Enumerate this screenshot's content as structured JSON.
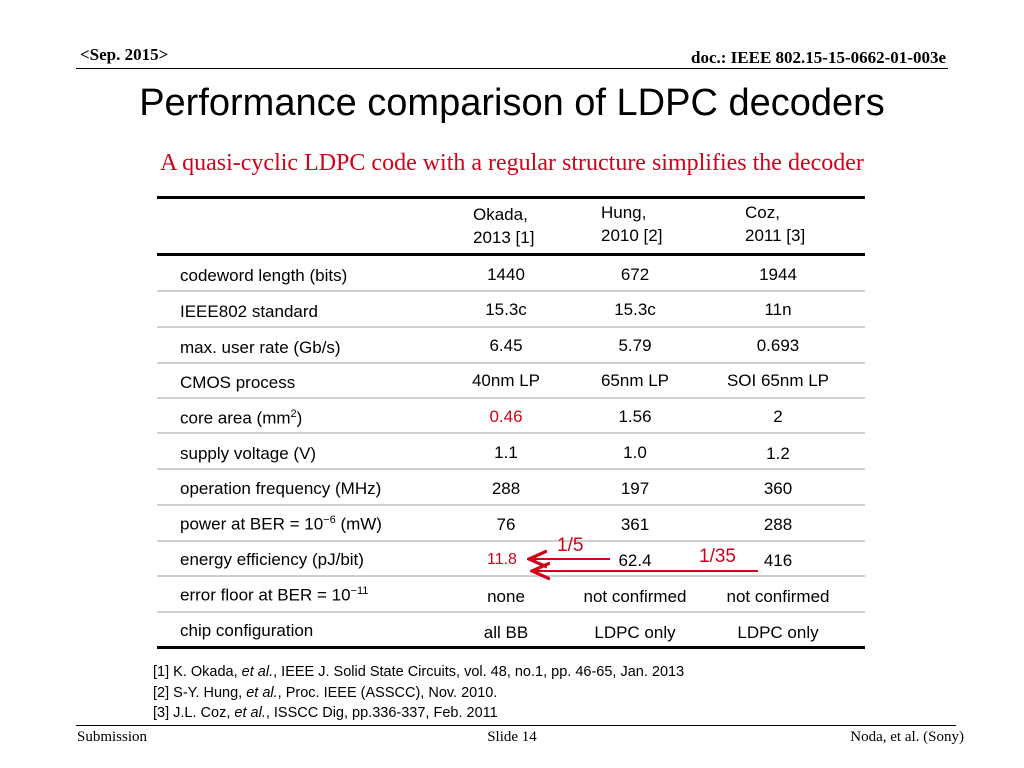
{
  "header": {
    "date": "<Sep. 2015>",
    "doc": "doc.: IEEE 802.15-15-0662-01-003e"
  },
  "title": "Performance comparison of LDPC decoders",
  "subtitle": "A quasi-cyclic LDPC code with a regular structure simplifies the decoder",
  "table": {
    "columns": [
      {
        "line1": "Okada,",
        "line2": "2013 [1]"
      },
      {
        "line1": "Hung,",
        "line2": "2010 [2]"
      },
      {
        "line1": "Coz,",
        "line2": "2011 [3]"
      }
    ],
    "rows": [
      {
        "label": "codeword length (bits)",
        "values": [
          "1440",
          "672",
          "1944"
        ]
      },
      {
        "label": "IEEE802 standard",
        "values": [
          "15.3c",
          "15.3c",
          "11n"
        ]
      },
      {
        "label": "max. user rate (Gb/s)",
        "values": [
          "6.45",
          "5.79",
          "0.693"
        ]
      },
      {
        "label": "CMOS process",
        "values": [
          "40nm LP",
          "65nm LP",
          "SOI 65nm LP"
        ]
      },
      {
        "label_pre": "core area (mm",
        "label_sup": "2",
        "label_post": ")",
        "values": [
          "0.46",
          "1.56",
          "2"
        ]
      },
      {
        "label": "supply voltage (V)",
        "values": [
          "1.1",
          "1.0",
          "1.2"
        ]
      },
      {
        "label": "operation frequency (MHz)",
        "values": [
          "288",
          "197",
          "360"
        ]
      },
      {
        "label_pre": "power at BER = 10",
        "label_sup": "−6",
        "label_post": " (mW)",
        "values": [
          "76",
          "361",
          "288"
        ]
      },
      {
        "label": "energy efficiency (pJ/bit)",
        "values": [
          "11.8",
          "62.4",
          "416"
        ]
      },
      {
        "label_pre": "error floor at BER = 10",
        "label_sup": "−11",
        "label_post": "",
        "values": [
          "none",
          "not confirmed",
          "not confirmed"
        ]
      },
      {
        "label": "chip configuration",
        "values": [
          "all BB",
          "LDPC only",
          "LDPC only"
        ]
      }
    ],
    "ratios": {
      "vs_hung": "1/5",
      "vs_coz": "1/35"
    }
  },
  "references": [
    {
      "pre": "[1] K. Okada, ",
      "italic": "et al.",
      "post": ", IEEE J. Solid State Circuits, vol. 48, no.1, pp. 46-65, Jan. 2013"
    },
    {
      "pre": "[2] S-Y. Hung, ",
      "italic": "et al.",
      "post": ",  Proc. IEEE (ASSCC), Nov. 2010."
    },
    {
      "pre": "[3] J.L. Coz, ",
      "italic": "et al.",
      "post": ", ISSCC Dig, pp.336-337, Feb. 2011"
    }
  ],
  "footer": {
    "left": "Submission",
    "center": "Slide 14",
    "right": "Noda, et al. (Sony)"
  },
  "colors": {
    "highlight": "#d0021b",
    "rule": "#000000",
    "grid": "#cfcfcf"
  }
}
